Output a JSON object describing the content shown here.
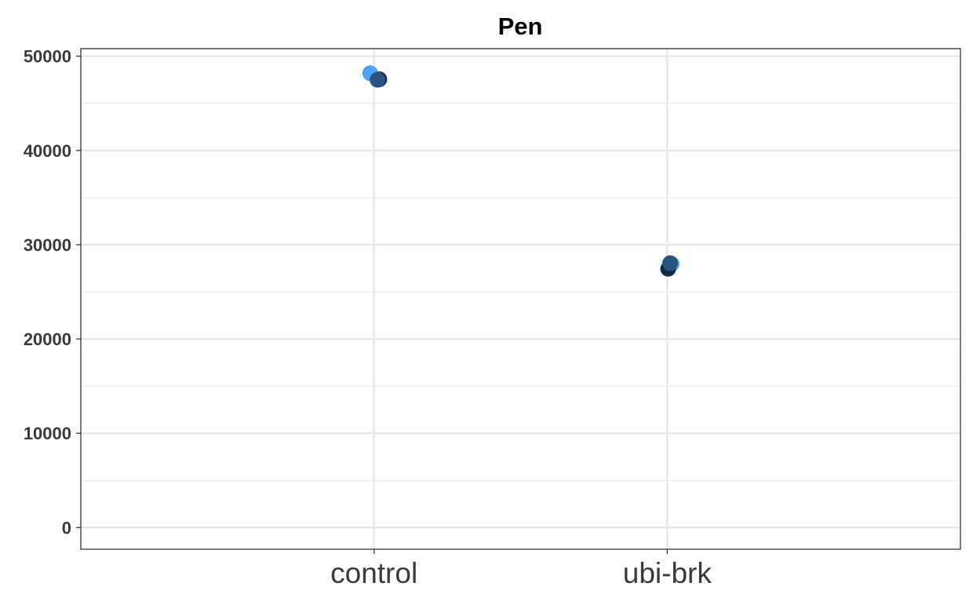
{
  "chart_data": {
    "type": "scatter",
    "title": "Pen",
    "xlabel": "",
    "ylabel": "",
    "categories": [
      "control",
      "ubi-brk"
    ],
    "ylim": [
      -2300,
      50800
    ],
    "yticks": [
      0,
      10000,
      20000,
      30000,
      40000,
      50000
    ],
    "grid": true,
    "points": [
      {
        "category": "control",
        "jitter": -0.013,
        "y": 48200,
        "color": "#4aa3f3"
      },
      {
        "category": "control",
        "jitter": 0.018,
        "y": 47550,
        "color": "#132b43"
      },
      {
        "category": "control",
        "jitter": 0.012,
        "y": 47500,
        "color": "#2b5281"
      },
      {
        "category": "ubi-brk",
        "jitter": 0.015,
        "y": 27950,
        "color": "#4aa3f3"
      },
      {
        "category": "ubi-brk",
        "jitter": 0.003,
        "y": 27450,
        "color": "#132b43"
      },
      {
        "category": "ubi-brk",
        "jitter": 0.01,
        "y": 28050,
        "color": "#2b5281"
      }
    ]
  }
}
